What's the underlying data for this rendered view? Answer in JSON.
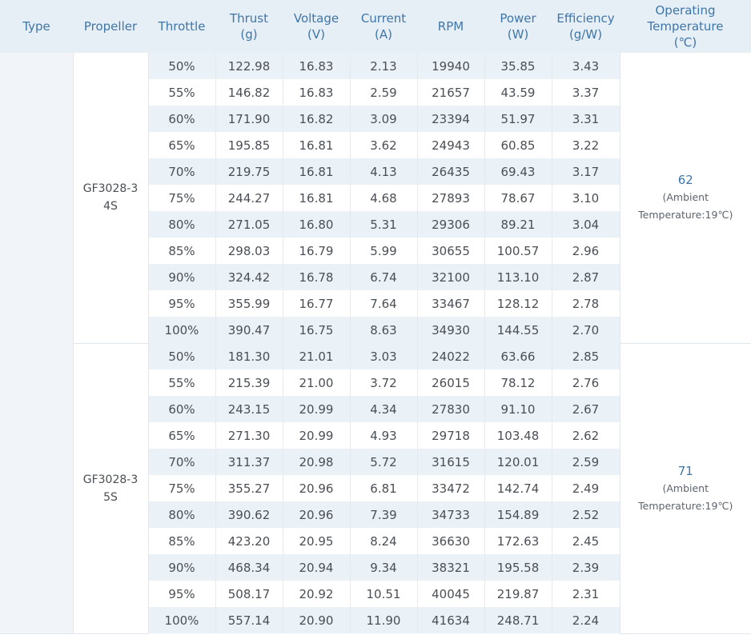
{
  "headers": [
    "Type",
    "Propeller",
    "Throttle",
    "Thrust\n(g)",
    "Voltage\n(V)",
    "Current\n(A)",
    "RPM",
    "Power\n(W)",
    "Efficiency\n(g/W)",
    "Operating\nTemperature\n(℃)"
  ],
  "type_value": "",
  "groups": [
    {
      "propeller": "GF3028-3\n4S",
      "temperature": "62",
      "temperature_note": "(Ambient\nTemperature:19℃)",
      "rows": [
        [
          "50%",
          "122.98",
          "16.83",
          "2.13",
          "19940",
          "35.85",
          "3.43"
        ],
        [
          "55%",
          "146.82",
          "16.83",
          "2.59",
          "21657",
          "43.59",
          "3.37"
        ],
        [
          "60%",
          "171.90",
          "16.82",
          "3.09",
          "23394",
          "51.97",
          "3.31"
        ],
        [
          "65%",
          "195.85",
          "16.81",
          "3.62",
          "24943",
          "60.85",
          "3.22"
        ],
        [
          "70%",
          "219.75",
          "16.81",
          "4.13",
          "26435",
          "69.43",
          "3.17"
        ],
        [
          "75%",
          "244.27",
          "16.81",
          "4.68",
          "27893",
          "78.67",
          "3.10"
        ],
        [
          "80%",
          "271.05",
          "16.80",
          "5.31",
          "29306",
          "89.21",
          "3.04"
        ],
        [
          "85%",
          "298.03",
          "16.79",
          "5.99",
          "30655",
          "100.57",
          "2.96"
        ],
        [
          "90%",
          "324.42",
          "16.78",
          "6.74",
          "32100",
          "113.10",
          "2.87"
        ],
        [
          "95%",
          "355.99",
          "16.77",
          "7.64",
          "33467",
          "128.12",
          "2.78"
        ],
        [
          "100%",
          "390.47",
          "16.75",
          "8.63",
          "34930",
          "144.55",
          "2.70"
        ]
      ]
    },
    {
      "propeller": "GF3028-3\n5S",
      "temperature": "71",
      "temperature_note": "(Ambient\nTemperature:19℃)",
      "rows": [
        [
          "50%",
          "181.30",
          "21.01",
          "3.03",
          "24022",
          "63.66",
          "2.85"
        ],
        [
          "55%",
          "215.39",
          "21.00",
          "3.72",
          "26015",
          "78.12",
          "2.76"
        ],
        [
          "60%",
          "243.15",
          "20.99",
          "4.34",
          "27830",
          "91.10",
          "2.67"
        ],
        [
          "65%",
          "271.30",
          "20.99",
          "4.93",
          "29718",
          "103.48",
          "2.62"
        ],
        [
          "70%",
          "311.37",
          "20.98",
          "5.72",
          "31615",
          "120.01",
          "2.59"
        ],
        [
          "75%",
          "355.27",
          "20.96",
          "6.81",
          "33472",
          "142.74",
          "2.49"
        ],
        [
          "80%",
          "390.62",
          "20.96",
          "7.39",
          "34733",
          "154.89",
          "2.52"
        ],
        [
          "85%",
          "423.20",
          "20.95",
          "8.24",
          "36630",
          "172.63",
          "2.45"
        ],
        [
          "90%",
          "468.34",
          "20.94",
          "9.34",
          "38321",
          "195.58",
          "2.39"
        ],
        [
          "95%",
          "508.17",
          "20.92",
          "10.51",
          "40045",
          "219.87",
          "2.31"
        ],
        [
          "100%",
          "557.14",
          "20.90",
          "11.90",
          "41634",
          "248.71",
          "2.24"
        ]
      ]
    }
  ]
}
